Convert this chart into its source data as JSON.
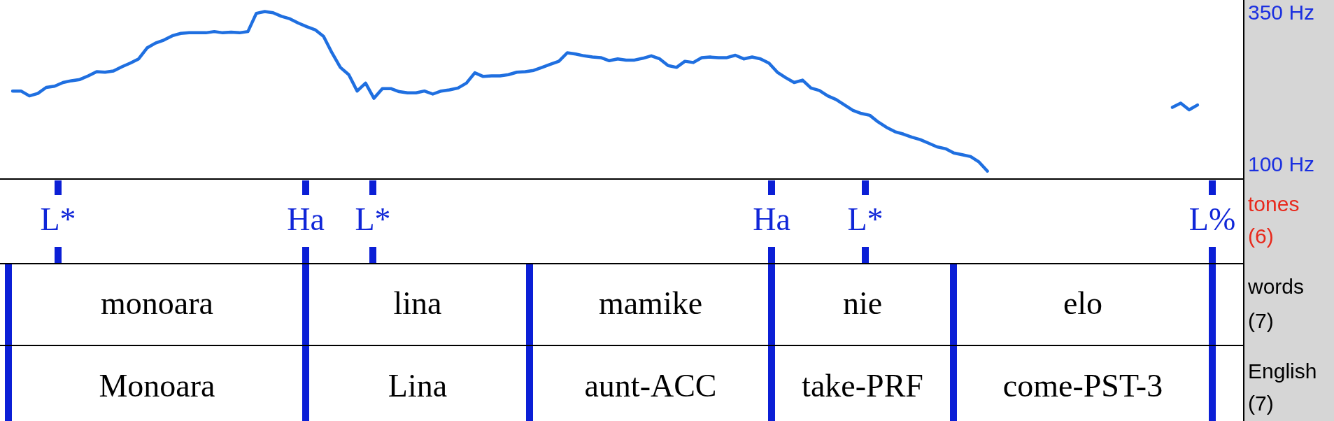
{
  "chart_data": {
    "type": "line",
    "categories": [
      null,
      null,
      null,
      null,
      null,
      null,
      null,
      null,
      null,
      null,
      null,
      null,
      null,
      null,
      null,
      null,
      null,
      null,
      null,
      null,
      null,
      null,
      null,
      null,
      null,
      null,
      null,
      null,
      null,
      null,
      null,
      null,
      null,
      null,
      null,
      null,
      null,
      null,
      null,
      null,
      null,
      null,
      null,
      null,
      null,
      null,
      null,
      null,
      null,
      null,
      null,
      null,
      null,
      null,
      null,
      null,
      null,
      null,
      null,
      null,
      null,
      null,
      null,
      null,
      null,
      null,
      null,
      null,
      null,
      null,
      null,
      null,
      null,
      null,
      null,
      null,
      null,
      null,
      null,
      null,
      null,
      null,
      null,
      null,
      null,
      null,
      null,
      null,
      null,
      null,
      null,
      null,
      null,
      null,
      null,
      null,
      null,
      null,
      null,
      null,
      null,
      null,
      null,
      null,
      null,
      null,
      null,
      null,
      null,
      null,
      null,
      null,
      null,
      null,
      null,
      null,
      null,
      null,
      null,
      null,
      null,
      null,
      null,
      null,
      null,
      null,
      null,
      null,
      null,
      null,
      null,
      null,
      null,
      null,
      null,
      null,
      null,
      null,
      null,
      null,
      null,
      null,
      null,
      null,
      null,
      null,
      null,
      null
    ],
    "series": [
      {
        "color": "#1f6fe0",
        "values": [
          null,
          220,
          220,
          212,
          216,
          226,
          228,
          234,
          237,
          239,
          245,
          252,
          251,
          253,
          260,
          266,
          273,
          291,
          299,
          304,
          311,
          315,
          316,
          316,
          316,
          318,
          316,
          317,
          316,
          318,
          348,
          351,
          349,
          343,
          339,
          332,
          326,
          321,
          310,
          283,
          259,
          247,
          220,
          233,
          208,
          224,
          224,
          219,
          217,
          217,
          220,
          215,
          220,
          222,
          225,
          233,
          250,
          244,
          245,
          245,
          247,
          251,
          252,
          254,
          259,
          264,
          269,
          283,
          281,
          278,
          276,
          275,
          270,
          273,
          271,
          271,
          274,
          278,
          273,
          262,
          259,
          269,
          267,
          275,
          276,
          275,
          275,
          279,
          273,
          276,
          273,
          266,
          251,
          242,
          234,
          238,
          225,
          221,
          212,
          206,
          197,
          188,
          183,
          180,
          169,
          160,
          153,
          149,
          144,
          140,
          134,
          128,
          125,
          118,
          115,
          112,
          103,
          88,
          null,
          null,
          null,
          null,
          null,
          null,
          null,
          null,
          null,
          null,
          null,
          null,
          null,
          null,
          null,
          null,
          null,
          null,
          null,
          null,
          null,
          null,
          null,
          null,
          null,
          null,
          null,
          null,
          null,
          null
        ]
      },
      {
        "color": "#1f6fe0",
        "values": [
          null,
          null,
          null,
          null,
          null,
          null,
          null,
          null,
          null,
          null,
          null,
          null,
          null,
          null,
          null,
          null,
          null,
          null,
          null,
          null,
          null,
          null,
          null,
          null,
          null,
          null,
          null,
          null,
          null,
          null,
          null,
          null,
          null,
          null,
          null,
          null,
          null,
          null,
          null,
          null,
          null,
          null,
          null,
          null,
          null,
          null,
          null,
          null,
          null,
          null,
          null,
          null,
          null,
          null,
          null,
          null,
          null,
          null,
          null,
          null,
          null,
          null,
          null,
          null,
          null,
          null,
          null,
          null,
          null,
          null,
          null,
          null,
          null,
          null,
          null,
          null,
          null,
          null,
          null,
          null,
          null,
          null,
          null,
          null,
          null,
          null,
          null,
          null,
          null,
          null,
          null,
          null,
          null,
          null,
          null,
          null,
          null,
          null,
          null,
          null,
          null,
          null,
          null,
          null,
          null,
          null,
          null,
          null,
          null,
          null,
          null,
          null,
          null,
          null,
          null,
          null,
          null,
          null,
          null,
          null,
          null,
          null,
          null,
          null,
          null,
          null,
          null,
          null,
          null,
          null,
          null,
          null,
          null,
          null,
          null,
          null,
          null,
          null,
          null,
          193,
          200,
          189,
          197,
          null,
          null,
          null,
          null,
          null
        ]
      }
    ],
    "ylim": [
      75,
      370
    ],
    "yticks": [
      {
        "value": 100,
        "label": "100 Hz"
      },
      {
        "value": 350,
        "label": "350 Hz"
      }
    ],
    "tick_labels": "y",
    "marker": "none",
    "line_style": "solid",
    "annotations": [
      "L*",
      "Ha",
      "L*",
      "Ha",
      "L*",
      "L%",
      "tones",
      "(6)",
      "monoara",
      "lina",
      "mamike",
      "nie",
      "elo",
      "words",
      "(7)",
      "Monoara",
      "Lina",
      "aunt-ACC",
      "take-PRF",
      "come-PST-3",
      "English",
      "(7)"
    ]
  }
}
